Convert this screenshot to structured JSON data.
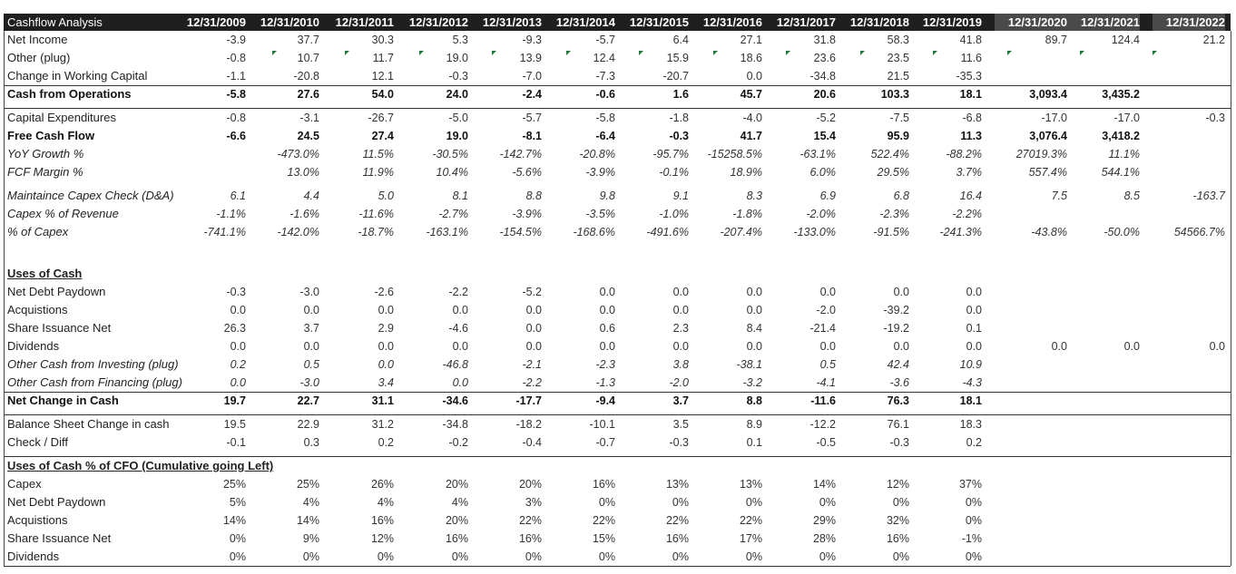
{
  "sheet": {
    "title": "Cashflow Analysis",
    "years": [
      "12/31/2009",
      "12/31/2010",
      "12/31/2011",
      "12/31/2012",
      "12/31/2013",
      "12/31/2014",
      "12/31/2015",
      "12/31/2016",
      "12/31/2017",
      "12/31/2018",
      "12/31/2019",
      "12/31/2020",
      "12/31/2021",
      "12/31/2022"
    ],
    "accent": "#1f1f1f",
    "projection_header": "#4a4a4a",
    "flag_color": "#1a7a3a",
    "rows": [
      {
        "label": "Net Income",
        "style": "",
        "values": [
          "-3.9",
          "37.7",
          "30.3",
          "5.3",
          "-9.3",
          "-5.7",
          "6.4",
          "27.1",
          "31.8",
          "58.3",
          "41.8",
          "89.7",
          "124.4",
          "21.2"
        ]
      },
      {
        "label": "Other (plug)",
        "style": "",
        "values": [
          "-0.8",
          "10.7",
          "11.7",
          "19.0",
          "13.9",
          "12.4",
          "15.9",
          "18.6",
          "23.6",
          "23.5",
          "11.6",
          "",
          "",
          ""
        ]
      },
      {
        "label": "Change in Working Capital",
        "style": "",
        "values": [
          "-1.1",
          "-20.8",
          "12.1",
          "-0.3",
          "-7.0",
          "-7.3",
          "-20.7",
          "0.0",
          "-34.8",
          "21.5",
          "-35.3",
          "",
          "",
          ""
        ]
      },
      {
        "label": "Cash from Operations",
        "style": "bold",
        "values": [
          "-5.8",
          "27.6",
          "54.0",
          "24.0",
          "-2.4",
          "-0.6",
          "1.6",
          "45.7",
          "20.6",
          "103.3",
          "18.1",
          "3,093.4",
          "3,435.2",
          ""
        ]
      },
      {
        "label": "Capital Expenditures",
        "style": "",
        "values": [
          "-0.8",
          "-3.1",
          "-26.7",
          "-5.0",
          "-5.7",
          "-5.8",
          "-1.8",
          "-4.0",
          "-5.2",
          "-7.5",
          "-6.8",
          "-17.0",
          "-17.0",
          "-0.3"
        ]
      },
      {
        "label": "Free Cash Flow",
        "style": "bold",
        "values": [
          "-6.6",
          "24.5",
          "27.4",
          "19.0",
          "-8.1",
          "-6.4",
          "-0.3",
          "41.7",
          "15.4",
          "95.9",
          "11.3",
          "3,076.4",
          "3,418.2",
          ""
        ]
      },
      {
        "label": "YoY Growth %",
        "style": "ital",
        "values": [
          "",
          "-473.0%",
          "11.5%",
          "-30.5%",
          "-142.7%",
          "-20.8%",
          "-95.7%",
          "-15258.5%",
          "-63.1%",
          "522.4%",
          "-88.2%",
          "27019.3%",
          "11.1%",
          ""
        ]
      },
      {
        "label": "FCF Margin %",
        "style": "ital",
        "values": [
          "",
          "13.0%",
          "11.9%",
          "10.4%",
          "-5.6%",
          "-3.9%",
          "-0.1%",
          "18.9%",
          "6.0%",
          "29.5%",
          "3.7%",
          "557.4%",
          "544.1%",
          ""
        ]
      },
      {
        "label": "Maintaince Capex Check (D&A)",
        "style": "ital",
        "values": [
          "6.1",
          "4.4",
          "5.0",
          "8.1",
          "8.8",
          "9.8",
          "9.1",
          "8.3",
          "6.9",
          "6.8",
          "16.4",
          "7.5",
          "8.5",
          "-163.7"
        ]
      },
      {
        "label": "Capex % of Revenue",
        "style": "ital",
        "values": [
          "-1.1%",
          "-1.6%",
          "-11.6%",
          "-2.7%",
          "-3.9%",
          "-3.5%",
          "-1.0%",
          "-1.8%",
          "-2.0%",
          "-2.3%",
          "-2.2%",
          "",
          "",
          ""
        ]
      },
      {
        "label": "% of Capex",
        "style": "ital",
        "values": [
          "-741.1%",
          "-142.0%",
          "-18.7%",
          "-163.1%",
          "-154.5%",
          "-168.6%",
          "-491.6%",
          "-207.4%",
          "-133.0%",
          "-91.5%",
          "-241.3%",
          "-43.8%",
          "-50.0%",
          "54566.7%"
        ]
      },
      {
        "label": "Uses of Cash",
        "style": "section",
        "values": [
          "",
          "",
          "",
          "",
          "",
          "",
          "",
          "",
          "",
          "",
          "",
          "",
          "",
          ""
        ]
      },
      {
        "label": "Net Debt Paydown",
        "style": "",
        "values": [
          "-0.3",
          "-3.0",
          "-2.6",
          "-2.2",
          "-5.2",
          "0.0",
          "0.0",
          "0.0",
          "0.0",
          "0.0",
          "0.0",
          "",
          "",
          ""
        ]
      },
      {
        "label": "Acquistions",
        "style": "",
        "values": [
          "0.0",
          "0.0",
          "0.0",
          "0.0",
          "0.0",
          "0.0",
          "0.0",
          "0.0",
          "-2.0",
          "-39.2",
          "0.0",
          "",
          "",
          ""
        ]
      },
      {
        "label": "Share Issuance Net",
        "style": "",
        "values": [
          "26.3",
          "3.7",
          "2.9",
          "-4.6",
          "0.0",
          "0.6",
          "2.3",
          "8.4",
          "-21.4",
          "-19.2",
          "0.1",
          "",
          "",
          ""
        ]
      },
      {
        "label": "Dividends",
        "style": "",
        "values": [
          "0.0",
          "0.0",
          "0.0",
          "0.0",
          "0.0",
          "0.0",
          "0.0",
          "0.0",
          "0.0",
          "0.0",
          "0.0",
          "0.0",
          "0.0",
          "0.0"
        ]
      },
      {
        "label": "Other Cash from Investing (plug)",
        "style": "ital",
        "values": [
          "0.2",
          "0.5",
          "0.0",
          "-46.8",
          "-2.1",
          "-2.3",
          "3.8",
          "-38.1",
          "0.5",
          "42.4",
          "10.9",
          "",
          "",
          ""
        ]
      },
      {
        "label": "Other Cash from Financing (plug)",
        "style": "ital",
        "values": [
          "0.0",
          "-3.0",
          "3.4",
          "0.0",
          "-2.2",
          "-1.3",
          "-2.0",
          "-3.2",
          "-4.1",
          "-3.6",
          "-4.3",
          "",
          "",
          ""
        ]
      },
      {
        "label": "Net Change in Cash",
        "style": "bold",
        "values": [
          "19.7",
          "22.7",
          "31.1",
          "-34.6",
          "-17.7",
          "-9.4",
          "3.7",
          "8.8",
          "-11.6",
          "76.3",
          "18.1",
          "",
          "",
          ""
        ]
      },
      {
        "label": "Balance Sheet Change in cash",
        "style": "",
        "values": [
          "19.5",
          "22.9",
          "31.2",
          "-34.8",
          "-18.2",
          "-10.1",
          "3.5",
          "8.9",
          "-12.2",
          "76.1",
          "18.3",
          "",
          "",
          ""
        ]
      },
      {
        "label": "Check  / Diff",
        "style": "",
        "values": [
          "-0.1",
          "0.3",
          "0.2",
          "-0.2",
          "-0.4",
          "-0.7",
          "-0.3",
          "0.1",
          "-0.5",
          "-0.3",
          "0.2",
          "",
          "",
          ""
        ]
      },
      {
        "label": "Uses of Cash % of CFO (Cumulative going Left)",
        "style": "section",
        "values": [
          "",
          "",
          "",
          "",
          "",
          "",
          "",
          "",
          "",
          "",
          "",
          "",
          "",
          ""
        ]
      },
      {
        "label": "Capex",
        "style": "",
        "values": [
          "25%",
          "25%",
          "26%",
          "20%",
          "20%",
          "16%",
          "13%",
          "13%",
          "14%",
          "12%",
          "37%",
          "",
          "",
          ""
        ]
      },
      {
        "label": "Net Debt Paydown",
        "style": "",
        "values": [
          "5%",
          "4%",
          "4%",
          "4%",
          "3%",
          "0%",
          "0%",
          "0%",
          "0%",
          "0%",
          "0%",
          "",
          "",
          ""
        ]
      },
      {
        "label": "Acquistions",
        "style": "",
        "values": [
          "14%",
          "14%",
          "16%",
          "20%",
          "22%",
          "22%",
          "22%",
          "22%",
          "29%",
          "32%",
          "0%",
          "",
          "",
          ""
        ]
      },
      {
        "label": "Share Issuance Net",
        "style": "",
        "values": [
          "0%",
          "9%",
          "12%",
          "16%",
          "16%",
          "15%",
          "16%",
          "17%",
          "28%",
          "16%",
          "-1%",
          "",
          "",
          ""
        ]
      },
      {
        "label": "Dividends",
        "style": "",
        "values": [
          "0%",
          "0%",
          "0%",
          "0%",
          "0%",
          "0%",
          "0%",
          "0%",
          "0%",
          "0%",
          "0%",
          "",
          "",
          ""
        ]
      }
    ]
  }
}
